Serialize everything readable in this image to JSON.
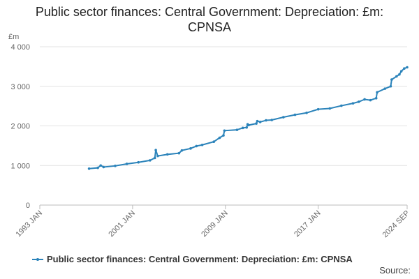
{
  "chart_data": {
    "type": "line",
    "title": "Public sector finances: Central Government: Depreciation: £m: CPNSA",
    "y_label": "£m",
    "source": "Source:",
    "x": [
      "1997 APR",
      "1998 JAN",
      "1998 APR",
      "1998 JUL",
      "1999 JUL",
      "2000 JUL",
      "2001 JUL",
      "2002 JUL",
      "2002 DEC",
      "2003 JAN",
      "2003 MAR",
      "2004 JAN",
      "2005 JAN",
      "2005 APR",
      "2006 JAN",
      "2006 JUL",
      "2007 JAN",
      "2008 JAN",
      "2008 JUL",
      "2008 NOV",
      "2008 DEC",
      "2010 JAN",
      "2010 JUL",
      "2010 NOV",
      "2010 DEC",
      "2011 JAN",
      "2011 SEP",
      "2011 OCT",
      "2012 JAN",
      "2012 JUL",
      "2013 JAN",
      "2014 JAN",
      "2015 JAN",
      "2016 JAN",
      "2017 JAN",
      "2018 JAN",
      "2019 JAN",
      "2020 JAN",
      "2020 JUL",
      "2021 JAN",
      "2021 JUL",
      "2022 JAN",
      "2022 FEB",
      "2022 OCT",
      "2023 APR",
      "2023 MAY",
      "2023 OCT",
      "2024 JAN",
      "2024 MAR",
      "2024 JUN",
      "2024 SEP"
    ],
    "series": [
      {
        "name": "Public sector finances: Central Government: Depreciation: £m: CPNSA",
        "color": "#2b83ba",
        "values": [
          920,
          940,
          1000,
          960,
          990,
          1040,
          1080,
          1130,
          1190,
          1390,
          1240,
          1280,
          1310,
          1380,
          1430,
          1490,
          1520,
          1600,
          1700,
          1760,
          1880,
          1900,
          1950,
          1960,
          2040,
          2020,
          2060,
          2120,
          2100,
          2140,
          2150,
          2220,
          2280,
          2330,
          2420,
          2440,
          2510,
          2570,
          2610,
          2670,
          2650,
          2700,
          2850,
          2940,
          3000,
          3170,
          3250,
          3300,
          3380,
          3450,
          3480
        ]
      }
    ],
    "xlim": [
      "1993 JAN",
      "2024 SEP"
    ],
    "xticks": [
      "1993 JAN",
      "2001 JAN",
      "2009 JAN",
      "2017 JAN",
      "2024 SEP"
    ],
    "ylim": [
      0,
      4000
    ],
    "yticks": [
      0,
      {
        "value": 1000,
        "label": "1 000"
      },
      {
        "value": 2000,
        "label": "2 000"
      },
      {
        "value": 3000,
        "label": "3 000"
      },
      {
        "value": 4000,
        "label": "4 000"
      }
    ],
    "grid": true
  }
}
